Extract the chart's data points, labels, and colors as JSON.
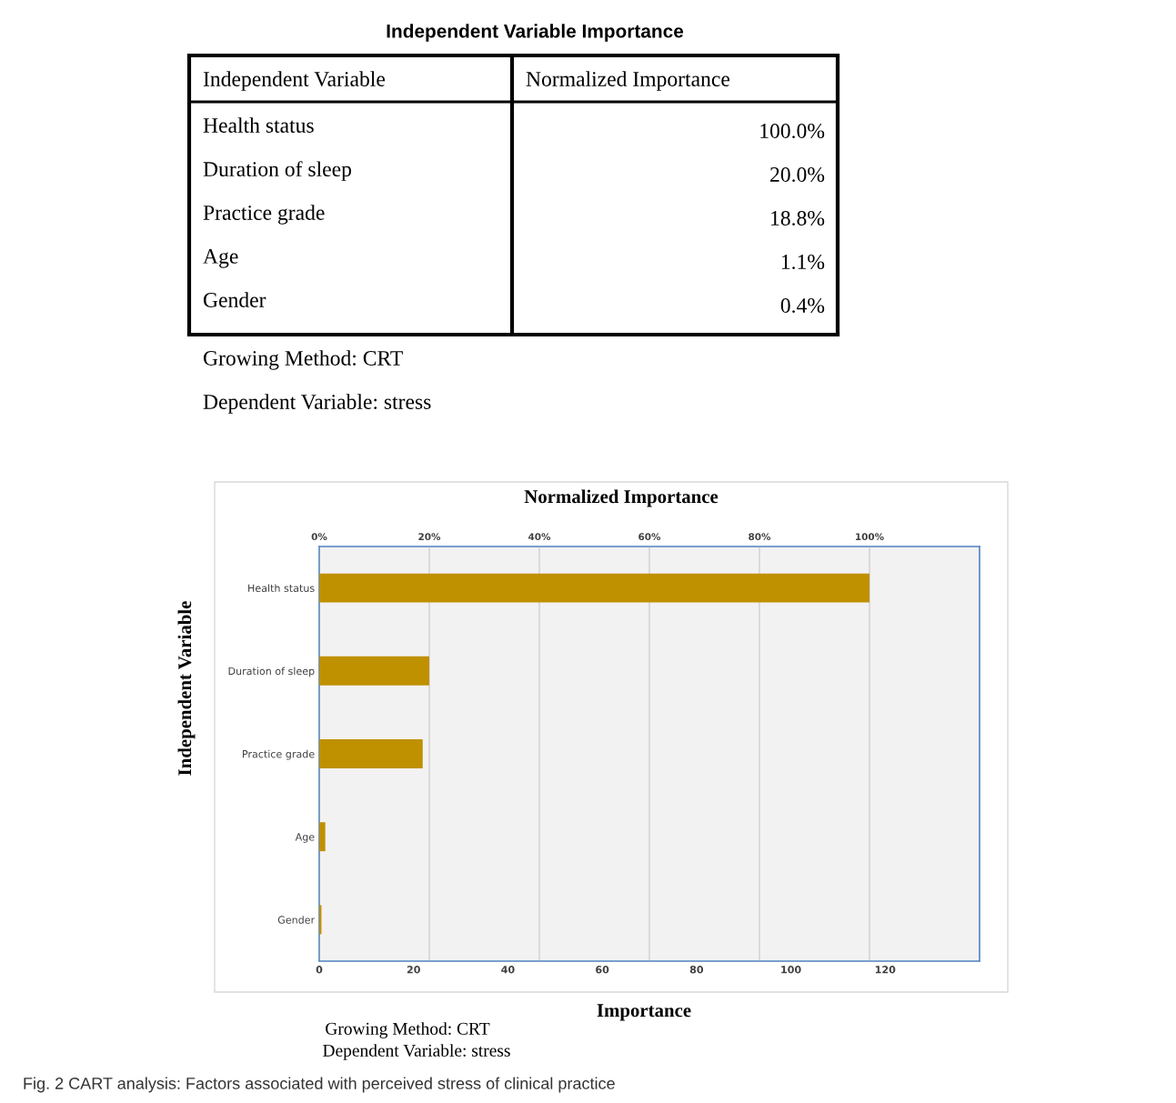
{
  "chart_data": {
    "type": "bar",
    "orientation": "horizontal",
    "title": "Normalized Importance",
    "xlabel": "Importance",
    "ylabel": "Independent Variable",
    "categories": [
      "Health status",
      "Duration of sleep",
      "Practice grade",
      "Age",
      "Gender"
    ],
    "series": [
      {
        "values": [
          100,
          20,
          18.8,
          1.1,
          0.4
        ],
        "color": "#bf9000",
        "axis": "x2"
      }
    ],
    "xlim": [
      0,
      140
    ],
    "xticks": [
      0,
      20,
      40,
      60,
      80,
      100,
      120
    ],
    "x2lim": [
      0,
      120
    ],
    "x2ticks": [
      {
        "value": 0,
        "label": "0%"
      },
      {
        "value": 20,
        "label": "20%"
      },
      {
        "value": 40,
        "label": "40%"
      },
      {
        "value": 60,
        "label": "60%"
      },
      {
        "value": 80,
        "label": "80%"
      },
      {
        "value": 100,
        "label": "100%"
      }
    ],
    "grid": "x",
    "legend": false,
    "annotations": [
      "Independent Variable Importance",
      "Independent Variable",
      "Normalized Importance",
      "Growing Method: CRT",
      "Dependent Variable: stress",
      "Growing Method: CRT",
      "Dependent Variable: stress",
      "Fig. 2 CART analysis: Factors associated with perceived stress of clinical practice",
      "Health status",
      "100.0%",
      "Duration of sleep",
      "20.0%",
      "Practice grade",
      "18.8%",
      "Age",
      "1.1%",
      "Gender",
      "0.4%"
    ]
  }
}
